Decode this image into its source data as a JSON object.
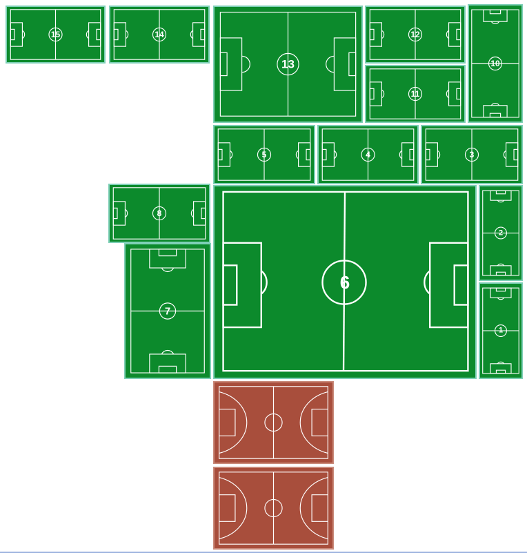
{
  "map": {
    "colors": {
      "grass": "#0c8a2c",
      "court": "#a84e3c",
      "lines": "#ffffff"
    },
    "fields": [
      {
        "id": "15",
        "label": "15"
      },
      {
        "id": "14",
        "label": "14"
      },
      {
        "id": "13",
        "label": "13"
      },
      {
        "id": "12",
        "label": "12"
      },
      {
        "id": "11",
        "label": "11"
      },
      {
        "id": "10",
        "label": "10"
      },
      {
        "id": "5",
        "label": "5"
      },
      {
        "id": "4",
        "label": "4"
      },
      {
        "id": "3",
        "label": "3"
      },
      {
        "id": "8",
        "label": "8"
      },
      {
        "id": "6",
        "label": "6"
      },
      {
        "id": "2",
        "label": "2"
      },
      {
        "id": "7",
        "label": "7"
      },
      {
        "id": "1",
        "label": "1"
      }
    ],
    "courts": [
      {
        "id": "basketball-court-1"
      },
      {
        "id": "basketball-court-2"
      }
    ]
  }
}
